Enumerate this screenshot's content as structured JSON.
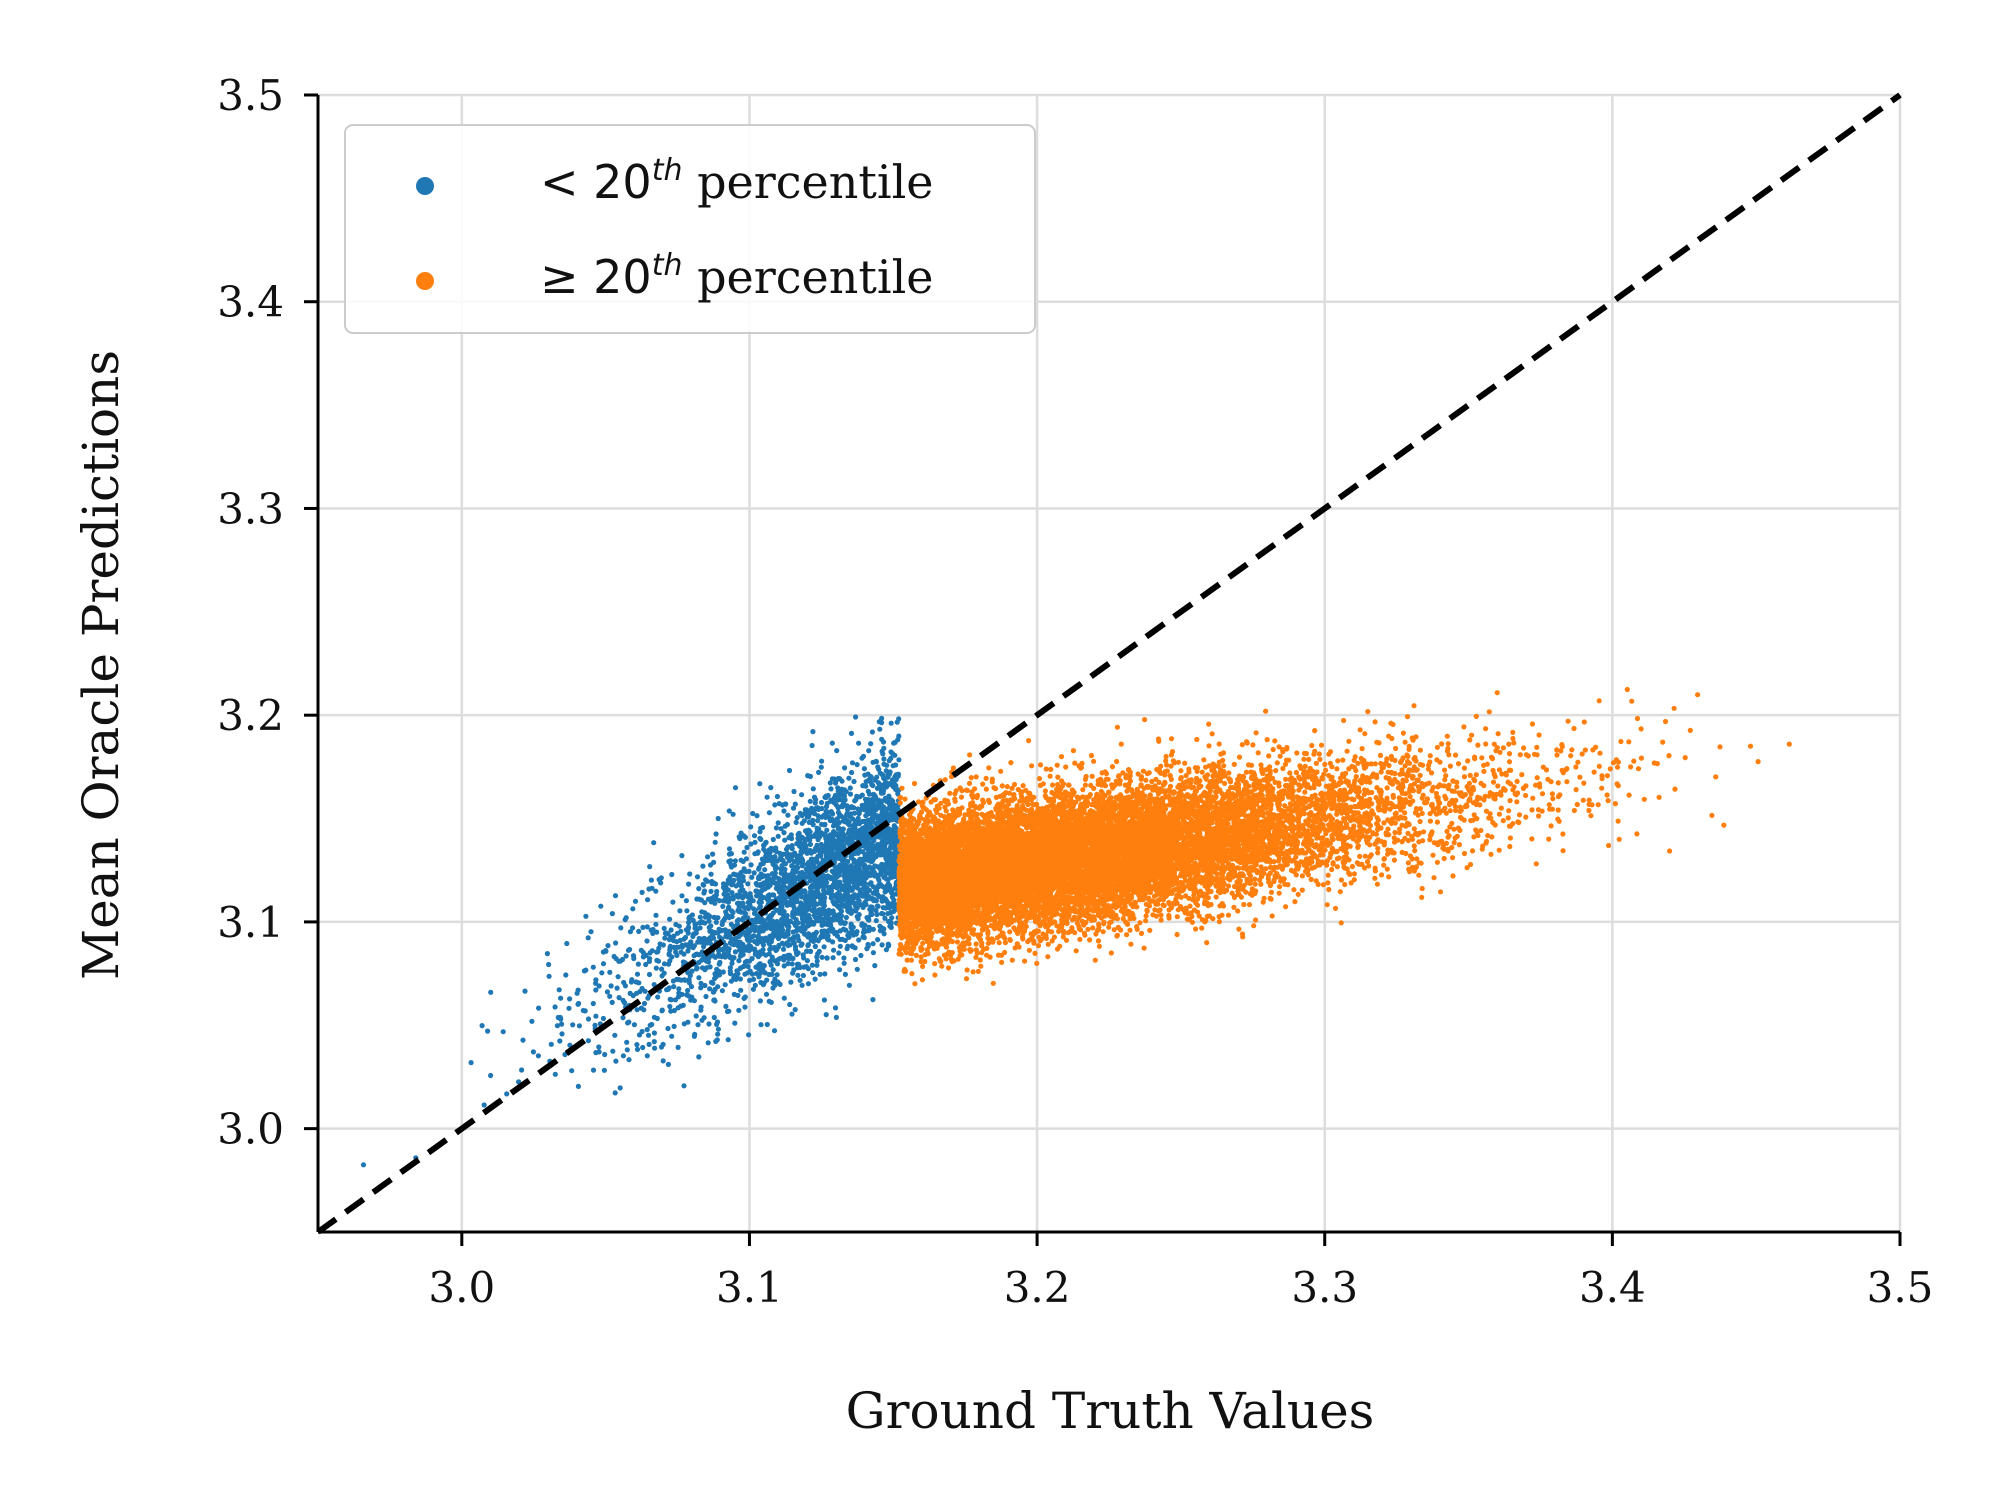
{
  "chart_data": {
    "type": "scatter",
    "title": "",
    "xlabel": "Ground Truth Values",
    "ylabel": "Mean Oracle Predictions",
    "xlim": [
      2.95,
      3.5
    ],
    "ylim": [
      2.95,
      3.5
    ],
    "xticks": [
      3.0,
      3.1,
      3.2,
      3.3,
      3.4,
      3.5
    ],
    "yticks": [
      3.0,
      3.1,
      3.2,
      3.3,
      3.4,
      3.5
    ],
    "xtick_labels": [
      "3.0",
      "3.1",
      "3.2",
      "3.3",
      "3.4",
      "3.5"
    ],
    "ytick_labels": [
      "3.0",
      "3.1",
      "3.2",
      "3.3",
      "3.4",
      "3.5"
    ],
    "grid": true,
    "legend_position": "top-left",
    "reference_line": {
      "name": "y = x",
      "style": "dashed",
      "color": "#000000",
      "from": [
        2.95,
        2.95
      ],
      "to": [
        3.5,
        3.5
      ]
    },
    "threshold_x": 3.152,
    "series": [
      {
        "name": "< 20th percentile",
        "legend_prefix": "< 20",
        "legend_sup": "th",
        "legend_suffix": " percentile",
        "color": "#1f77b4",
        "x_range": [
          2.95,
          3.152
        ],
        "mean_x": 3.11,
        "mean_y": 3.11,
        "n_points": 3000
      },
      {
        "name": "≥ 20th percentile",
        "legend_prefix": "≥ 20",
        "legend_sup": "th",
        "legend_suffix": " percentile",
        "color": "#ff7f0e",
        "x_range": [
          3.152,
          3.47
        ],
        "mean_x": 3.25,
        "mean_y": 3.145,
        "n_points": 13000
      }
    ]
  }
}
